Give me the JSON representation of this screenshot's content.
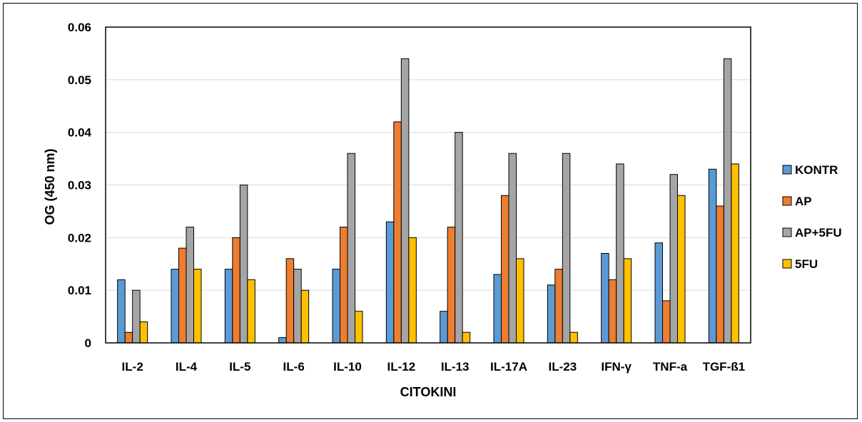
{
  "chart_data": {
    "type": "bar",
    "title": "",
    "xlabel": "CITOKINI",
    "ylabel": "OG (450 nm)",
    "ylim": [
      0,
      0.06
    ],
    "yticks": [
      "0",
      "0.01",
      "0.02",
      "0.03",
      "0.04",
      "0.05",
      "0.06"
    ],
    "grid": true,
    "legend_position": "right",
    "categories": [
      "IL-2",
      "IL-4",
      "IL-5",
      "IL-6",
      "IL-10",
      "IL-12",
      "IL-13",
      "IL-17A",
      "IL-23",
      "IFN-γ",
      "TNF-a",
      "TGF-ß1"
    ],
    "series": [
      {
        "name": "KONTR",
        "color": "#5B9BD5",
        "values": [
          0.012,
          0.014,
          0.014,
          0.001,
          0.014,
          0.023,
          0.006,
          0.013,
          0.011,
          0.017,
          0.019,
          0.033
        ]
      },
      {
        "name": "AP",
        "color": "#ED7D31",
        "values": [
          0.002,
          0.018,
          0.02,
          0.016,
          0.022,
          0.042,
          0.022,
          0.028,
          0.014,
          0.012,
          0.008,
          0.026
        ]
      },
      {
        "name": "AP+5FU",
        "color": "#A5A5A5",
        "values": [
          0.01,
          0.022,
          0.03,
          0.014,
          0.036,
          0.054,
          0.04,
          0.036,
          0.036,
          0.034,
          0.032,
          0.054
        ]
      },
      {
        "name": "5FU",
        "color": "#FFC000",
        "values": [
          0.004,
          0.014,
          0.012,
          0.01,
          0.006,
          0.02,
          0.002,
          0.016,
          0.002,
          0.016,
          0.028,
          0.034
        ]
      }
    ]
  }
}
